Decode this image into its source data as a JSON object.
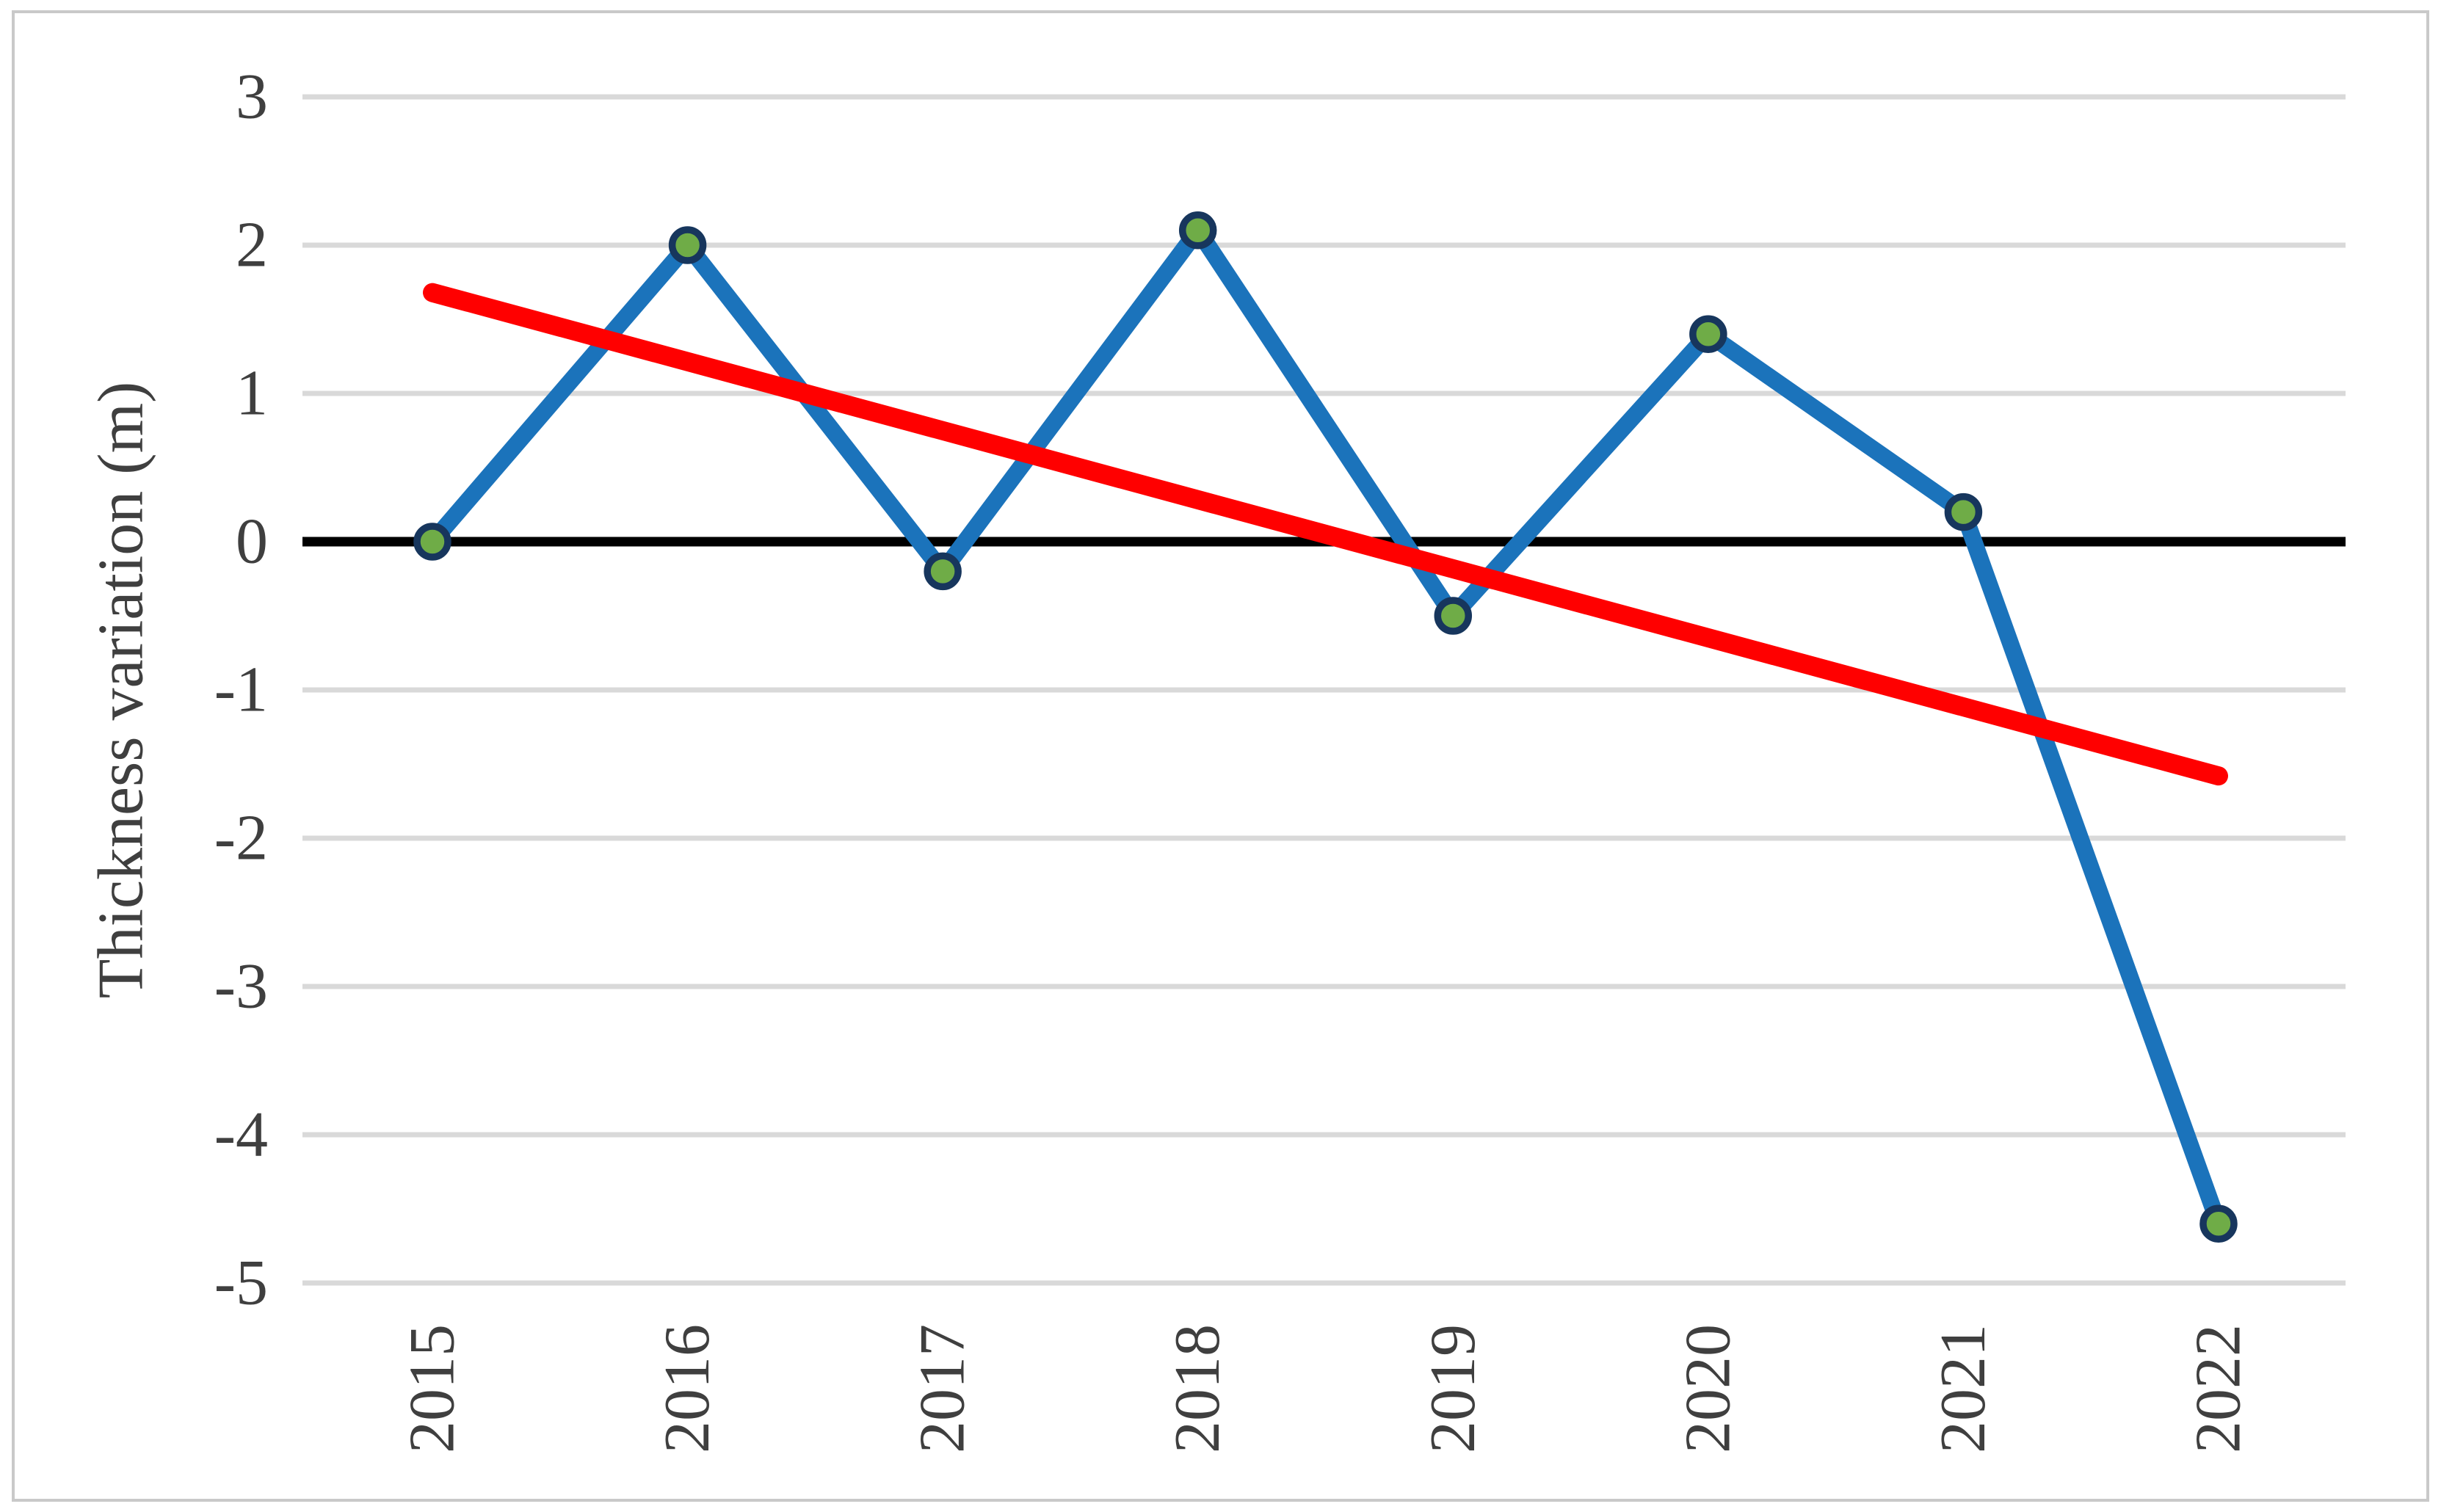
{
  "chart_data": {
    "type": "line",
    "title": "",
    "xlabel": "",
    "ylabel": "Thickness variation (m)",
    "categories": [
      "2015",
      "2016",
      "2017",
      "2018",
      "2019",
      "2020",
      "2021",
      "2022"
    ],
    "series": [
      {
        "name": "Thickness variation",
        "values": [
          0,
          2.0,
          -0.2,
          2.1,
          -0.5,
          1.4,
          0.2,
          -4.6
        ]
      }
    ],
    "trendline": {
      "type": "linear",
      "from_index": 0,
      "to_index": 7,
      "value_start": 1.68,
      "value_end": -1.58
    },
    "y_ticks": [
      3,
      2,
      1,
      0,
      -1,
      -2,
      -3,
      -4,
      -5
    ],
    "ylim": [
      -5,
      3
    ],
    "grid": "horizontal",
    "legend": "none",
    "colors": {
      "series_line": "#1B73BB",
      "marker_fill": "#6FAC47",
      "marker_border": "#17365D",
      "trend_line": "#FF0000",
      "gridline": "#D9D9D9",
      "zero_line": "#000000",
      "tick_text": "#3F3F3F",
      "frame_border": "#C9C9C9"
    }
  }
}
